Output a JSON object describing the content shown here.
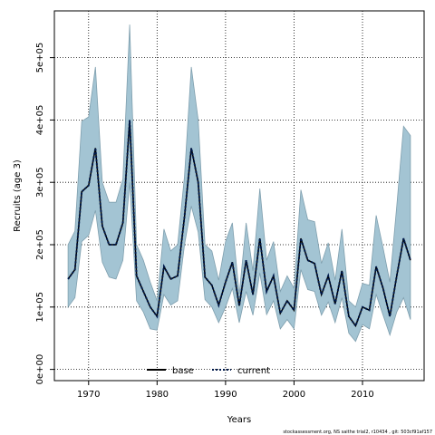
{
  "chart_data": {
    "type": "line",
    "xlabel": "Years",
    "ylabel": "Recruits (age 3)",
    "xlim": [
      1965,
      2019
    ],
    "ylim": [
      -18000,
      575000
    ],
    "x_ticks": [
      1970,
      1980,
      1990,
      2000,
      2010
    ],
    "x_tick_labels": [
      "1970",
      "1980",
      "1990",
      "2000",
      "2010"
    ],
    "y_ticks": [
      0,
      100000,
      200000,
      300000,
      400000,
      500000
    ],
    "y_tick_labels": [
      "0e+00",
      "1e+05",
      "2e+05",
      "3e+05",
      "4e+05",
      "5e+05"
    ],
    "grid": true,
    "legend_position": "bottom-center",
    "x": [
      1967,
      1968,
      1969,
      1970,
      1971,
      1972,
      1973,
      1974,
      1975,
      1976,
      1977,
      1978,
      1979,
      1980,
      1981,
      1982,
      1983,
      1984,
      1985,
      1986,
      1987,
      1988,
      1989,
      1990,
      1991,
      1992,
      1993,
      1994,
      1995,
      1996,
      1997,
      1998,
      1999,
      2000,
      2001,
      2002,
      2003,
      2004,
      2005,
      2006,
      2007,
      2008,
      2009,
      2010,
      2011,
      2012,
      2013,
      2014,
      2015,
      2016,
      2017
    ],
    "band": {
      "upper": [
        200000,
        222000,
        398000,
        405000,
        485000,
        300000,
        268000,
        268000,
        305000,
        553000,
        200000,
        175000,
        140000,
        110000,
        225000,
        190000,
        200000,
        310000,
        485000,
        400000,
        200000,
        190000,
        143000,
        205000,
        235000,
        120000,
        235000,
        158000,
        290000,
        175000,
        205000,
        125000,
        150000,
        130000,
        288000,
        240000,
        237000,
        170000,
        203000,
        143000,
        225000,
        110000,
        100000,
        138000,
        135000,
        247000,
        195000,
        140000,
        262000,
        390000,
        375000
      ],
      "lower": [
        100000,
        115000,
        205000,
        215000,
        255000,
        172000,
        148000,
        145000,
        175000,
        300000,
        110000,
        92000,
        65000,
        63000,
        120000,
        103000,
        110000,
        200000,
        262000,
        220000,
        112000,
        100000,
        75000,
        100000,
        130000,
        75000,
        125000,
        87000,
        155000,
        88000,
        110000,
        65000,
        80000,
        65000,
        160000,
        128000,
        125000,
        87000,
        108000,
        75000,
        115000,
        58000,
        45000,
        72000,
        65000,
        120000,
        87000,
        55000,
        92000,
        115000,
        80000
      ]
    },
    "series": [
      {
        "name": "base",
        "values": [
          145000,
          160000,
          285000,
          295000,
          355000,
          230000,
          200000,
          200000,
          235000,
          400000,
          150000,
          125000,
          100000,
          85000,
          165000,
          145000,
          150000,
          245000,
          355000,
          300000,
          148000,
          135000,
          103000,
          140000,
          172000,
          102000,
          175000,
          120000,
          210000,
          125000,
          150000,
          90000,
          110000,
          95000,
          210000,
          175000,
          170000,
          120000,
          150000,
          105000,
          158000,
          85000,
          70000,
          100000,
          95000,
          165000,
          130000,
          85000,
          150000,
          210000,
          175000
        ]
      },
      {
        "name": "current",
        "values": [
          145000,
          160000,
          285000,
          295000,
          355000,
          230000,
          200000,
          200000,
          235000,
          400000,
          150000,
          125000,
          100000,
          85000,
          165000,
          145000,
          150000,
          245000,
          355000,
          300000,
          148000,
          135000,
          103000,
          140000,
          172000,
          102000,
          175000,
          120000,
          210000,
          125000,
          150000,
          90000,
          110000,
          95000,
          210000,
          175000,
          170000,
          120000,
          150000,
          105000,
          158000,
          85000,
          70000,
          100000,
          95000,
          165000,
          130000,
          85000,
          150000,
          210000,
          175000
        ]
      }
    ],
    "colors": {
      "band_fill": "#a3c4d3",
      "band_stroke": "#7f9fae",
      "base_line": "#000000",
      "current_line": "#001a4d",
      "grid": "#000000"
    }
  },
  "footer": "stockassessment.org, NS saithe trial2, r10434 , git: 503cf91af157"
}
